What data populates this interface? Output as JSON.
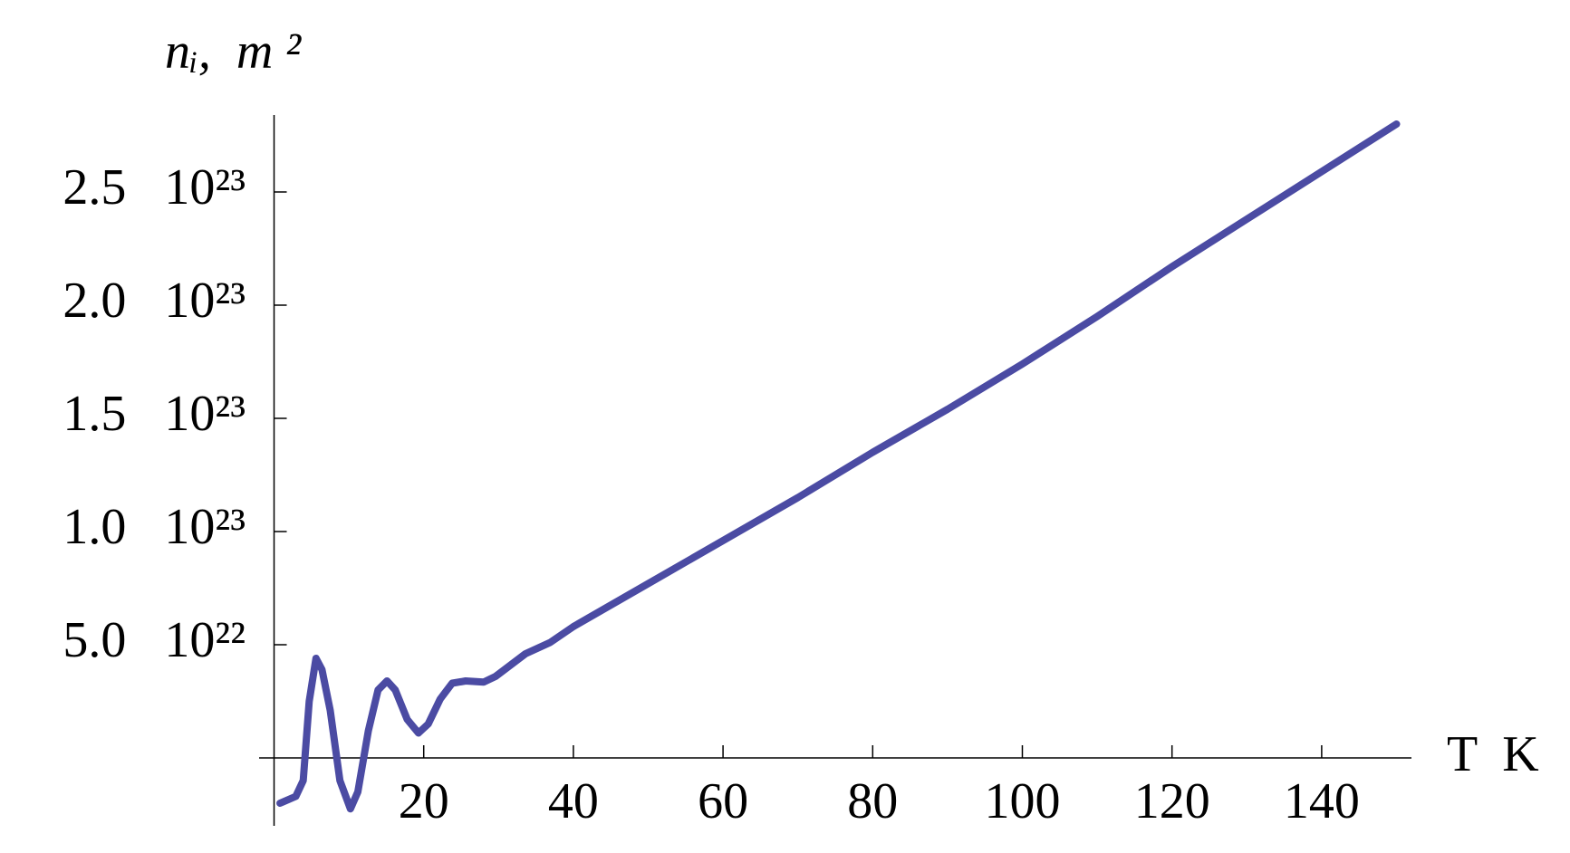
{
  "chart_data": {
    "type": "line",
    "y_label": "nᵢ,  m ²",
    "x_label": "T  K",
    "x": [
      0.8,
      2.9,
      3.9,
      4.7,
      5.6,
      6.4,
      7.5,
      8.8,
      10.2,
      11.2,
      12.6,
      13.9,
      15.1,
      16.2,
      17.8,
      19.3,
      20.6,
      22.2,
      23.8,
      25.6,
      28.0,
      29.6,
      31.6,
      33.6,
      36.9,
      40,
      50,
      60,
      70,
      80,
      90,
      100,
      110,
      120,
      130,
      140,
      150
    ],
    "series": [
      {
        "name": "nᵢ",
        "color": "#4b4ba3",
        "values": [
          -2e+22,
          -1.7e+22,
          -1e+22,
          2.5e+22,
          4.4e+22,
          3.9e+22,
          2.1e+22,
          -1e+22,
          -2.25e+22,
          -1.5e+22,
          1.2e+22,
          3e+22,
          3.4e+22,
          3e+22,
          1.7e+22,
          1.1e+22,
          1.5e+22,
          2.6e+22,
          3.3e+22,
          3.4e+22,
          3.35e+22,
          3.6e+22,
          4.1e+22,
          4.6e+22,
          5.1e+22,
          5.8e+22,
          7.7e+22,
          9.6e+22,
          1.15e+23,
          1.35e+23,
          1.54e+23,
          1.74e+23,
          1.95e+23,
          2.17e+23,
          2.38e+23,
          2.59e+23,
          2.8e+23
        ]
      }
    ],
    "xlim": [
      -2,
      152
    ],
    "ylim": [
      -3e+22,
      2.84e+23
    ],
    "xticks": [
      20,
      40,
      60,
      80,
      100,
      120,
      140
    ],
    "yticks": [
      {
        "value": 5e+22,
        "label": "5.0   10²²"
      },
      {
        "value": 1e+23,
        "label": "1.0   10²³"
      },
      {
        "value": 1.5e+23,
        "label": "1.5   10²³"
      },
      {
        "value": 2e+23,
        "label": "2.0   10²³"
      },
      {
        "value": 2.5e+23,
        "label": "2.5   10²³"
      }
    ],
    "grid": false
  }
}
